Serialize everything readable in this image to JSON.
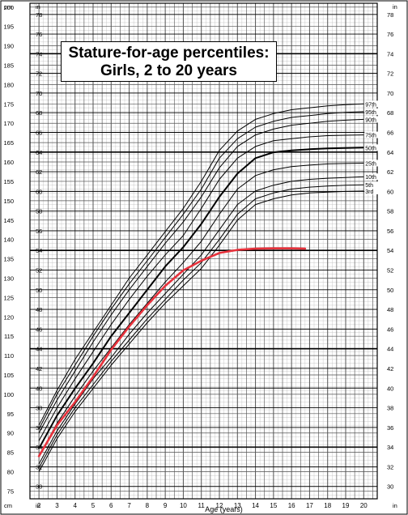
{
  "chart_data": {
    "type": "line",
    "title_line1": "Stature-for-age percentiles:",
    "title_line2": "Girls, 2 to 20 years",
    "xlabel": "Age (years)",
    "x_unit_left": "cm",
    "y_unit_in": "in",
    "xlim": [
      1.5,
      20.75
    ],
    "ylim_cm": [
      73,
      201
    ],
    "x_ticks": [
      2,
      3,
      4,
      5,
      6,
      7,
      8,
      9,
      10,
      11,
      12,
      13,
      14,
      15,
      16,
      17,
      18,
      19,
      20
    ],
    "cm_ticks": [
      75,
      80,
      85,
      90,
      95,
      100,
      105,
      110,
      115,
      120,
      125,
      130,
      135,
      140,
      145,
      150,
      155,
      160,
      165,
      170,
      175,
      180,
      185,
      190,
      195,
      200
    ],
    "in_ticks": [
      30,
      32,
      34,
      36,
      38,
      40,
      42,
      44,
      46,
      48,
      50,
      52,
      54,
      56,
      58,
      60,
      62,
      64,
      66,
      68,
      70,
      72,
      74,
      76,
      78
    ],
    "grid": true,
    "ages": [
      2,
      3,
      4,
      5,
      6,
      7,
      8,
      9,
      10,
      11,
      12,
      13,
      14,
      15,
      16,
      17,
      18,
      19,
      20
    ],
    "series": [
      {
        "name": "97th",
        "values": [
          92,
          101,
          109,
          116,
          123,
          130,
          136,
          142,
          148,
          155,
          163,
          168,
          171,
          172.5,
          173.5,
          174,
          174.5,
          174.8,
          175
        ]
      },
      {
        "name": "95th",
        "values": [
          91,
          100,
          107.5,
          115,
          122,
          128.5,
          134.5,
          140.5,
          146.5,
          153,
          161,
          166,
          169,
          170.5,
          171.5,
          172,
          172.5,
          172.8,
          173
        ]
      },
      {
        "name": "90th",
        "values": [
          90,
          98.5,
          106,
          113.5,
          120.5,
          127,
          133,
          139,
          144.5,
          151,
          158.5,
          164,
          167,
          168.5,
          169.5,
          170,
          170.5,
          170.8,
          171
        ]
      },
      {
        "name": "75th",
        "values": [
          88,
          96.5,
          104,
          111,
          118,
          124.5,
          130.5,
          136,
          141,
          148,
          155.5,
          161,
          164,
          165.5,
          166,
          166.5,
          166.8,
          166.9,
          167
        ]
      },
      {
        "name": "50th",
        "values": [
          86,
          94.5,
          101.5,
          108,
          115,
          121,
          127,
          133,
          138,
          144,
          151,
          157,
          161,
          162.5,
          163,
          163.3,
          163.5,
          163.6,
          163.7
        ]
      },
      {
        "name": "25th",
        "values": [
          84,
          92.5,
          99.5,
          106,
          112,
          118,
          123.5,
          129,
          134,
          139.5,
          146.5,
          153,
          156.5,
          158,
          158.8,
          159.2,
          159.5,
          159.6,
          159.7
        ]
      },
      {
        "name": "10th",
        "values": [
          82,
          90.5,
          97.5,
          104,
          109.5,
          115.5,
          121,
          126,
          131,
          136,
          142.5,
          149,
          152.5,
          154,
          155,
          155.5,
          155.8,
          156,
          156.2
        ]
      },
      {
        "name": "5th",
        "values": [
          81,
          89.5,
          96.5,
          102.5,
          108.5,
          114,
          119.5,
          124.5,
          129.5,
          134,
          140,
          146.5,
          150.5,
          152,
          153,
          153.5,
          153.8,
          154,
          154.1
        ]
      },
      {
        "name": "3rd",
        "values": [
          80,
          88.5,
          95.5,
          101.5,
          107.5,
          113,
          118.5,
          123.5,
          128,
          132.5,
          138.5,
          145,
          149,
          150.5,
          151.5,
          152,
          152.2,
          152.4,
          152.5
        ]
      }
    ],
    "highlight": {
      "color": "#e8323c",
      "x": [
        2,
        3,
        4,
        5,
        6,
        7,
        8,
        9,
        10,
        11,
        12,
        13,
        14,
        15,
        16,
        16.75
      ],
      "y": [
        84,
        92,
        98,
        104.5,
        111.5,
        117.5,
        123,
        128,
        132,
        134.5,
        136.5,
        137.3,
        137.6,
        137.7,
        137.7,
        137.6
      ]
    }
  }
}
